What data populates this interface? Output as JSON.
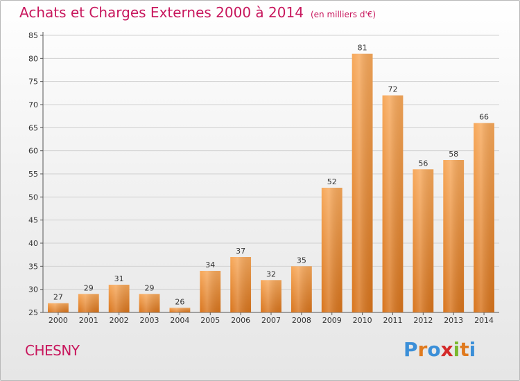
{
  "header": {
    "title": "Achats et Charges Externes 2000 à 2014",
    "subtitle": "(en milliers d'€)"
  },
  "footer": {
    "commune": "CHESNY",
    "brand": "Proxiti"
  },
  "colors": {
    "bar_top": "#f7a85a",
    "bar_bottom": "#d8741c",
    "title": "#c8175d",
    "grid": "#d0d0d0"
  },
  "chart_data": {
    "type": "bar",
    "title": "Achats et Charges Externes 2000 à 2014",
    "subtitle": "(en milliers d'€)",
    "xlabel": "",
    "ylabel": "",
    "categories": [
      "2000",
      "2001",
      "2002",
      "2003",
      "2004",
      "2005",
      "2006",
      "2007",
      "2008",
      "2009",
      "2010",
      "2011",
      "2012",
      "2013",
      "2014"
    ],
    "values": [
      27,
      29,
      31,
      29,
      26,
      34,
      37,
      32,
      35,
      52,
      81,
      72,
      56,
      58,
      66
    ],
    "ylim": [
      25,
      85
    ],
    "yticks": [
      25,
      30,
      35,
      40,
      45,
      50,
      55,
      60,
      65,
      70,
      75,
      80,
      85
    ],
    "grid": true,
    "data_labels": true
  }
}
